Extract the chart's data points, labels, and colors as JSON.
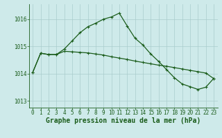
{
  "title": "Graphe pression niveau de la mer (hPa)",
  "background_color": "#ceeaea",
  "line_color": "#1a5c1a",
  "marker_color": "#1a5c1a",
  "grid_color_major": "#aacccc",
  "grid_color_minor": "#bbdddd",
  "xlim": [
    -0.5,
    23.5
  ],
  "ylim": [
    1012.75,
    1016.55
  ],
  "yticks": [
    1013,
    1014,
    1015,
    1016
  ],
  "xticks": [
    0,
    1,
    2,
    3,
    4,
    5,
    6,
    7,
    8,
    9,
    10,
    11,
    12,
    13,
    14,
    15,
    16,
    17,
    18,
    19,
    20,
    21,
    22,
    23
  ],
  "series1_x": [
    0,
    1,
    2,
    3,
    4,
    5,
    6,
    7,
    8,
    9,
    10,
    11,
    12,
    13,
    14,
    15,
    16,
    17,
    18,
    19,
    20,
    21,
    22,
    23
  ],
  "series1_y": [
    1014.05,
    1014.75,
    1014.7,
    1014.7,
    1014.9,
    1015.2,
    1015.5,
    1015.72,
    1015.85,
    1016.0,
    1016.08,
    1016.22,
    1015.75,
    1015.3,
    1015.05,
    1014.72,
    1014.45,
    1014.15,
    1013.85,
    1013.62,
    1013.52,
    1013.42,
    1013.5,
    1013.82
  ],
  "series2_x": [
    0,
    1,
    2,
    3,
    4,
    5,
    6,
    7,
    8,
    9,
    10,
    11,
    12,
    13,
    14,
    15,
    16,
    17,
    18,
    19,
    20,
    21,
    22,
    23
  ],
  "series2_y": [
    1014.05,
    1014.75,
    1014.7,
    1014.7,
    1014.82,
    1014.8,
    1014.78,
    1014.76,
    1014.72,
    1014.68,
    1014.62,
    1014.57,
    1014.52,
    1014.46,
    1014.41,
    1014.36,
    1014.31,
    1014.27,
    1014.22,
    1014.17,
    1014.12,
    1014.07,
    1014.02,
    1013.82
  ],
  "title_fontsize": 7,
  "tick_fontsize": 5.5,
  "linewidth": 0.9,
  "markersize": 2.2
}
